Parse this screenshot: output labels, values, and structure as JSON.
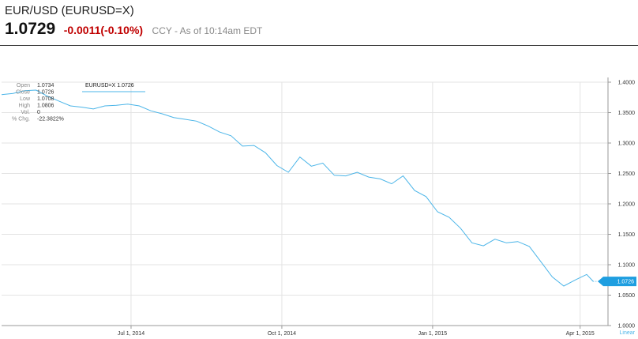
{
  "header": {
    "symbol_title": "EUR/USD (EURUSD=X)",
    "price": "1.0729",
    "change": "-0.0011(-0.10%)",
    "meta": "CCY - As of 10:14am EDT"
  },
  "colors": {
    "line": "#4bb5e8",
    "change_negative": "#c00000",
    "grid": "#e3e3e3",
    "marker_bg": "#1e9ee0"
  },
  "chart_data": {
    "type": "line",
    "title": "",
    "series": [
      {
        "name": "EURUSD=X",
        "x": [
          "2014-04-13",
          "2014-04-20",
          "2014-04-27",
          "2014-05-04",
          "2014-05-11",
          "2014-05-18",
          "2014-05-25",
          "2014-06-01",
          "2014-06-08",
          "2014-06-15",
          "2014-06-22",
          "2014-06-29",
          "2014-07-06",
          "2014-07-13",
          "2014-07-20",
          "2014-07-27",
          "2014-08-03",
          "2014-08-10",
          "2014-08-17",
          "2014-08-24",
          "2014-08-31",
          "2014-09-07",
          "2014-09-14",
          "2014-09-21",
          "2014-09-28",
          "2014-10-05",
          "2014-10-12",
          "2014-10-19",
          "2014-10-26",
          "2014-11-02",
          "2014-11-09",
          "2014-11-16",
          "2014-11-23",
          "2014-11-30",
          "2014-12-07",
          "2014-12-14",
          "2014-12-21",
          "2014-12-28",
          "2015-01-04",
          "2015-01-11",
          "2015-01-18",
          "2015-01-25",
          "2015-02-01",
          "2015-02-08",
          "2015-02-15",
          "2015-02-22",
          "2015-03-01",
          "2015-03-08",
          "2015-03-15",
          "2015-03-22",
          "2015-03-29",
          "2015-04-05",
          "2015-04-09"
        ],
        "values": [
          1.3795,
          1.3815,
          1.386,
          1.387,
          1.377,
          1.369,
          1.361,
          1.359,
          1.356,
          1.361,
          1.362,
          1.364,
          1.361,
          1.353,
          1.348,
          1.342,
          1.339,
          1.336,
          1.328,
          1.318,
          1.312,
          1.295,
          1.296,
          1.284,
          1.263,
          1.252,
          1.277,
          1.262,
          1.267,
          1.247,
          1.246,
          1.252,
          1.244,
          1.241,
          1.233,
          1.246,
          1.222,
          1.212,
          1.187,
          1.178,
          1.16,
          1.136,
          1.131,
          1.142,
          1.136,
          1.138,
          1.13,
          1.105,
          1.08,
          1.065,
          1.075,
          1.084,
          1.0726
        ]
      }
    ],
    "y_ticks": [
      "1.4000",
      "1.3500",
      "1.3000",
      "1.2500",
      "1.2000",
      "1.1500",
      "1.1000",
      "1.0500",
      "1.0000"
    ],
    "x_ticks": [
      {
        "label": "Jul 1, 2014",
        "date": "2014-07-01"
      },
      {
        "label": "Oct 1, 2014",
        "date": "2014-10-01"
      },
      {
        "label": "Jan 1, 2015",
        "date": "2015-01-01"
      },
      {
        "label": "Apr 1, 2015",
        "date": "2015-04-01"
      }
    ],
    "ylim": [
      1.0,
      1.4
    ],
    "xlim": [
      "2014-04-13",
      "2015-04-18"
    ],
    "grid": true,
    "scale_label": "Linear",
    "last_value_label": "1.0726",
    "legend": {
      "label": "EURUSD=X 1.0726",
      "position": "top-left"
    },
    "ohlc": [
      {
        "label": "Open",
        "value": "1.0734"
      },
      {
        "label": "Close",
        "value": "1.0726"
      },
      {
        "label": "Low",
        "value": "1.0708"
      },
      {
        "label": "High",
        "value": "1.0806"
      },
      {
        "label": "Vol.",
        "value": "0"
      },
      {
        "label": "% Chg.",
        "value": "-22.3822%"
      }
    ]
  }
}
